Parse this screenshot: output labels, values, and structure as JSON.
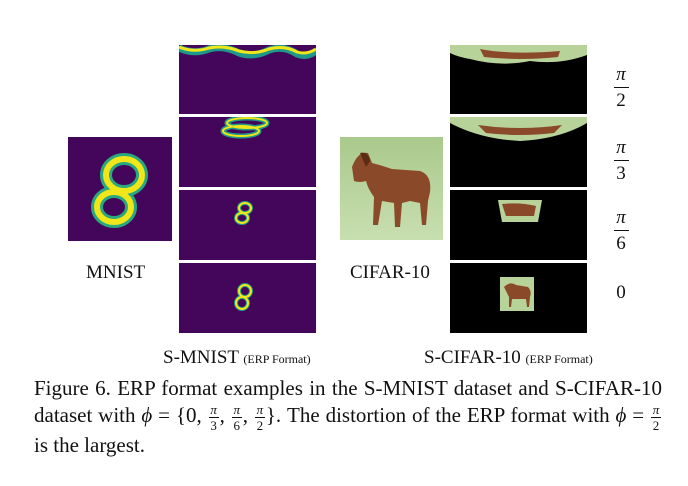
{
  "labels": {
    "mnist": "MNIST",
    "cifar": "CIFAR-10",
    "smnist": "S-MNIST",
    "scifar": "S-CIFAR-10",
    "erp_format": "(ERP Format)"
  },
  "phi_labels": [
    {
      "num": "π",
      "den": "2"
    },
    {
      "num": "π",
      "den": "3"
    },
    {
      "num": "π",
      "den": "6"
    },
    {
      "value": "0"
    }
  ],
  "caption": {
    "prefix": "Figure 6.",
    "part1": "ERP format examples in the S-MNIST dataset and S-CIFAR-10 dataset with",
    "phi_symbol": "ϕ",
    "equals": "=",
    "set_open": "{0,",
    "frac_num": "π",
    "den3": "3",
    "den6": "6",
    "den2": "2",
    "comma": ",",
    "set_close": "}.",
    "part2": "The distortion of the ERP format with",
    "part3": "is the largest."
  },
  "colors": {
    "viridis_bg": "#44065a",
    "viridis_yellow": "#f0e619",
    "viridis_green": "#2aa87f",
    "viridis_teal": "#1f9a8a",
    "cifar_green": "#b4d29a",
    "horse_brown": "#8a4a2a"
  }
}
